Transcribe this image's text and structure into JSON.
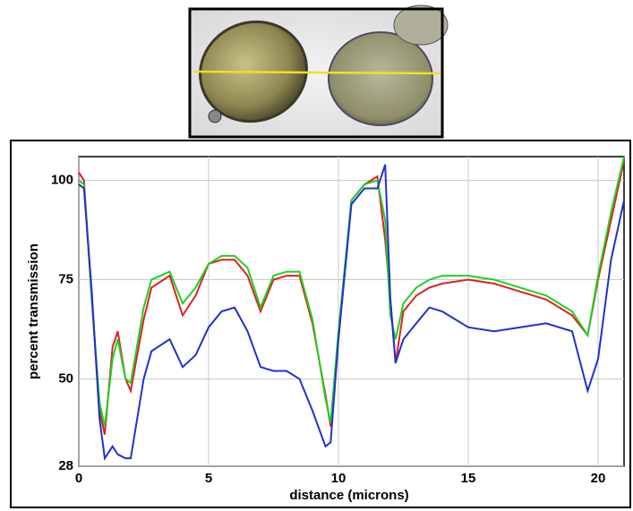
{
  "chart_data": {
    "type": "line",
    "xlabel": "distance (microns)",
    "ylabel": "percent transmission",
    "x": [
      0,
      0.2,
      0.5,
      0.8,
      1.0,
      1.3,
      1.5,
      1.8,
      2.0,
      2.5,
      2.8,
      3.5,
      4.0,
      4.5,
      5.0,
      5.5,
      6.0,
      6.5,
      7.0,
      7.5,
      8.0,
      8.5,
      9.0,
      9.5,
      9.7,
      10.0,
      10.5,
      11.0,
      11.5,
      11.8,
      12.0,
      12.2,
      12.5,
      13,
      13.5,
      14,
      15,
      16,
      17,
      18,
      19,
      19.6,
      20,
      20.5,
      21
    ],
    "series": [
      {
        "color": "#e02020",
        "values": [
          102,
          100,
          70,
          42,
          36,
          58,
          62,
          50,
          47,
          65,
          73,
          76,
          66,
          71,
          79,
          80,
          80,
          76,
          67,
          75,
          76,
          76,
          64,
          46,
          38,
          60,
          95,
          99,
          101,
          85,
          70,
          54,
          67,
          71,
          73,
          74,
          75,
          74,
          72,
          70,
          66,
          61,
          75,
          90,
          105
        ]
      },
      {
        "color": "#20d020",
        "values": [
          100,
          99,
          70,
          44,
          38,
          55,
          60,
          50,
          49,
          68,
          75,
          77,
          69,
          73,
          79,
          81,
          81,
          78,
          68,
          76,
          77,
          77,
          65,
          45,
          39,
          62,
          95,
          99,
          100,
          90,
          66,
          60,
          69,
          73,
          75,
          76,
          76,
          75,
          73,
          71,
          67,
          61,
          76,
          92,
          106
        ]
      },
      {
        "color": "#2030d0",
        "values": [
          99,
          98,
          72,
          40,
          30,
          33,
          31,
          30,
          30,
          50,
          57,
          60,
          53,
          56,
          63,
          67,
          68,
          62,
          53,
          52,
          52,
          50,
          42,
          33,
          34,
          60,
          94,
          98,
          98,
          104,
          70,
          54,
          60,
          64,
          68,
          67,
          63,
          62,
          63,
          64,
          62,
          47,
          55,
          80,
          95
        ]
      }
    ],
    "xlim": [
      0,
      21
    ],
    "xticks": [
      0,
      5,
      10,
      15,
      20
    ],
    "ylim": [
      28,
      106
    ],
    "yticks": [
      28,
      50,
      75,
      100
    ],
    "grid": true
  }
}
